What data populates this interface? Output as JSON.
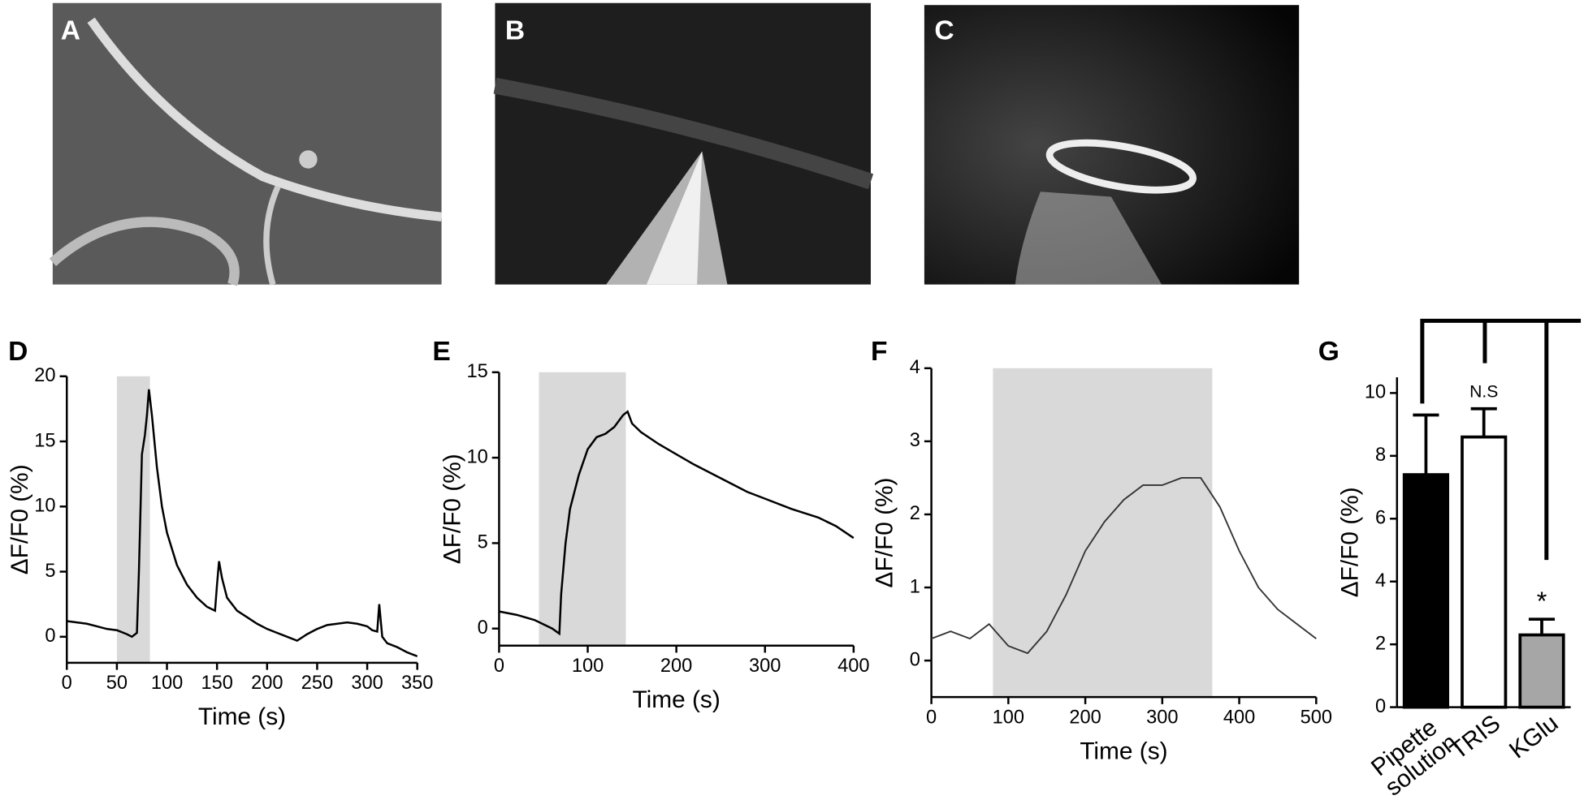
{
  "images": [
    {
      "label": "A"
    },
    {
      "label": "B"
    },
    {
      "label": "C"
    }
  ],
  "chart_data": [
    {
      "type": "line",
      "panel": "D",
      "xlabel": "Time (s)",
      "ylabel": "ΔF/F0 (%)",
      "color": "#000000",
      "shade": [
        50,
        83
      ],
      "x": [
        0,
        10,
        20,
        30,
        40,
        50,
        60,
        65,
        70,
        72,
        75,
        78,
        80,
        82,
        85,
        90,
        95,
        100,
        110,
        120,
        130,
        140,
        148,
        150,
        152,
        155,
        160,
        170,
        180,
        190,
        200,
        210,
        220,
        230,
        240,
        250,
        260,
        270,
        280,
        290,
        300,
        305,
        310,
        312,
        315,
        320,
        330,
        340,
        350
      ],
      "values": [
        1.2,
        1.1,
        1,
        0.8,
        0.6,
        0.5,
        0.2,
        0,
        0.3,
        5,
        14,
        15.5,
        17,
        19,
        17,
        13,
        10,
        8,
        5.5,
        4,
        3,
        2.3,
        2,
        4,
        5.8,
        4.5,
        3,
        2,
        1.5,
        1,
        0.6,
        0.3,
        0,
        -0.3,
        0.2,
        0.6,
        0.9,
        1,
        1.1,
        1,
        0.8,
        0.5,
        0.4,
        2.5,
        0,
        -0.5,
        -0.8,
        -1.2,
        -1.5
      ],
      "xlim": [
        0,
        350
      ],
      "xticks": [
        0,
        50,
        100,
        150,
        200,
        250,
        300,
        350
      ],
      "ylim": [
        -2,
        20
      ],
      "yticks": [
        0,
        5,
        10,
        15,
        20
      ]
    },
    {
      "type": "line",
      "panel": "E",
      "xlabel": "Time (s)",
      "ylabel": "ΔF/F0 (%)",
      "color": "#000000",
      "shade": [
        45,
        143
      ],
      "x": [
        0,
        20,
        40,
        60,
        68,
        70,
        75,
        80,
        90,
        100,
        110,
        120,
        130,
        140,
        145,
        150,
        160,
        180,
        200,
        220,
        250,
        280,
        300,
        330,
        360,
        380,
        400
      ],
      "values": [
        1,
        0.8,
        0.5,
        0,
        -0.3,
        2,
        5,
        7,
        9,
        10.5,
        11.2,
        11.4,
        11.8,
        12.5,
        12.7,
        12,
        11.5,
        10.8,
        10.2,
        9.6,
        8.8,
        8,
        7.6,
        7,
        6.5,
        6,
        5.3
      ],
      "xlim": [
        0,
        400
      ],
      "xticks": [
        0,
        100,
        200,
        300,
        400
      ],
      "ylim": [
        -1,
        15
      ],
      "yticks": [
        0,
        5,
        10,
        15
      ]
    },
    {
      "type": "line",
      "panel": "F",
      "xlabel": "Time (s)",
      "ylabel": "ΔF/F0 (%)",
      "color": "#333333",
      "shade": [
        80,
        365
      ],
      "x": [
        0,
        25,
        50,
        75,
        100,
        125,
        150,
        175,
        200,
        225,
        250,
        275,
        300,
        325,
        350,
        375,
        400,
        425,
        450,
        475,
        500
      ],
      "values": [
        0.3,
        0.4,
        0.3,
        0.5,
        0.2,
        0.1,
        0.4,
        0.9,
        1.5,
        1.9,
        2.2,
        2.4,
        2.4,
        2.5,
        2.5,
        2.1,
        1.5,
        1.0,
        0.7,
        0.5,
        0.3
      ],
      "xlim": [
        0,
        500
      ],
      "xticks": [
        0,
        100,
        200,
        300,
        400,
        500
      ],
      "ylim": [
        -0.5,
        4
      ],
      "yticks": [
        0,
        1,
        2,
        3,
        4
      ]
    },
    {
      "type": "bar",
      "panel": "G",
      "ylabel": "ΔF/F0 (%)",
      "categories": [
        "Pipette solution",
        "TRIS",
        "KGlu"
      ],
      "values": [
        7.4,
        8.6,
        2.3
      ],
      "errors": [
        1.9,
        0.9,
        0.5
      ],
      "colors": [
        "#000000",
        "#ffffff",
        "#a6a6a6"
      ],
      "value_annotations": [
        null,
        "N.S",
        "*"
      ],
      "ylim": [
        0,
        10.5
      ],
      "yticks": [
        0,
        2,
        4,
        6,
        8,
        10
      ]
    }
  ]
}
